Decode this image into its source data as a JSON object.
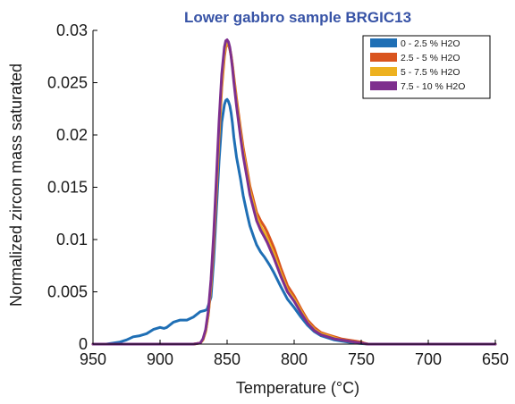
{
  "chart_data": {
    "type": "line",
    "title": "Lower gabbro sample BRGIC13",
    "xlabel": "Temperature (°C)",
    "ylabel": "Normalized zircon mass saturated",
    "xlim": [
      650,
      950
    ],
    "x_reversed": true,
    "ylim": [
      0,
      0.03
    ],
    "x_ticks": [
      950,
      900,
      850,
      800,
      750,
      700,
      650
    ],
    "y_ticks": [
      0,
      0.005,
      0.01,
      0.015,
      0.02,
      0.025,
      0.03
    ],
    "x_tick_labels": [
      "950",
      "900",
      "850",
      "800",
      "750",
      "700",
      "650"
    ],
    "y_tick_labels": [
      "0",
      "0.005",
      "0.01",
      "0.015",
      "0.02",
      "0.025",
      "0.03"
    ],
    "grid": false,
    "legend_position": "top-right",
    "series": [
      {
        "name": "0 - 2.5 % H2O",
        "color": "#1f6fb5",
        "x": [
          950,
          940,
          930,
          925,
          920,
          915,
          910,
          905,
          900,
          897,
          895,
          890,
          885,
          880,
          875,
          870,
          867,
          865,
          862,
          860,
          858,
          856,
          854,
          852,
          851,
          850,
          849,
          848,
          847,
          846,
          845,
          843,
          840,
          838,
          835,
          833,
          830,
          828,
          825,
          822,
          820,
          818,
          815,
          810,
          805,
          800,
          795,
          790,
          785,
          780,
          775,
          770,
          765,
          760,
          755,
          750,
          745,
          740,
          700,
          650
        ],
        "y": [
          0,
          0,
          0.0002,
          0.0004,
          0.0007,
          0.0008,
          0.001,
          0.0014,
          0.0016,
          0.0015,
          0.0016,
          0.0021,
          0.0023,
          0.0023,
          0.0026,
          0.0031,
          0.0032,
          0.0033,
          0.0045,
          0.008,
          0.0128,
          0.0175,
          0.0212,
          0.0229,
          0.0233,
          0.0234,
          0.0232,
          0.0228,
          0.0221,
          0.0211,
          0.0198,
          0.0179,
          0.0158,
          0.0142,
          0.0124,
          0.0113,
          0.0102,
          0.0095,
          0.0088,
          0.0083,
          0.0079,
          0.0075,
          0.0068,
          0.0055,
          0.0043,
          0.0035,
          0.0026,
          0.0018,
          0.0012,
          0.0008,
          0.0006,
          0.0004,
          0.0003,
          0.0002,
          0.0001,
          5e-05,
          0,
          0,
          0,
          0
        ]
      },
      {
        "name": "2.5 - 5 % H2O",
        "color": "#d9541e",
        "x": [
          950,
          900,
          880,
          875,
          870,
          868,
          866,
          864,
          862,
          860,
          858,
          856,
          854,
          852,
          851,
          850,
          849,
          848,
          847,
          846,
          845,
          843,
          840,
          838,
          835,
          833,
          830,
          828,
          825,
          822,
          820,
          818,
          815,
          810,
          805,
          800,
          795,
          790,
          785,
          780,
          775,
          770,
          765,
          760,
          755,
          750,
          748,
          745,
          700,
          650
        ],
        "y": [
          0,
          0,
          0,
          0,
          0.0001,
          0.0004,
          0.0012,
          0.0028,
          0.0055,
          0.0095,
          0.0145,
          0.0198,
          0.0245,
          0.0275,
          0.0284,
          0.0287,
          0.0286,
          0.0282,
          0.0276,
          0.0267,
          0.0256,
          0.0235,
          0.0206,
          0.0188,
          0.0166,
          0.0151,
          0.0136,
          0.0126,
          0.0118,
          0.0112,
          0.0107,
          0.0101,
          0.0092,
          0.0073,
          0.0056,
          0.0046,
          0.0034,
          0.0023,
          0.0016,
          0.0011,
          0.0009,
          0.0007,
          0.0005,
          0.0004,
          0.0003,
          0.0002,
          0.0001,
          0,
          0,
          0
        ]
      },
      {
        "name": "5 - 7.5 % H2O",
        "color": "#edb120",
        "x": [
          950,
          900,
          880,
          875,
          870,
          868,
          866,
          864,
          862,
          860,
          858,
          856,
          854,
          852,
          851,
          850,
          849,
          848,
          847,
          846,
          845,
          843,
          840,
          838,
          835,
          833,
          830,
          828,
          825,
          822,
          820,
          818,
          815,
          810,
          805,
          800,
          795,
          790,
          785,
          780,
          775,
          770,
          765,
          760,
          755,
          750,
          745,
          700,
          650
        ],
        "y": [
          0,
          0,
          0,
          0,
          0.0001,
          0.0004,
          0.0012,
          0.0029,
          0.0058,
          0.0099,
          0.015,
          0.0204,
          0.025,
          0.0278,
          0.0286,
          0.0288,
          0.0287,
          0.0283,
          0.0276,
          0.0266,
          0.0254,
          0.0232,
          0.0202,
          0.0184,
          0.0162,
          0.0147,
          0.0132,
          0.0122,
          0.0113,
          0.0106,
          0.0101,
          0.0095,
          0.0086,
          0.0068,
          0.0052,
          0.0043,
          0.0032,
          0.0021,
          0.0014,
          0.001,
          0.0008,
          0.0006,
          0.0004,
          0.0003,
          0.0002,
          0.0001,
          0,
          0,
          0
        ]
      },
      {
        "name": "7.5 - 10 % H2O",
        "color": "#7e2f8e",
        "x": [
          950,
          900,
          880,
          875,
          870,
          868,
          866,
          864,
          862,
          860,
          858,
          856,
          854,
          852,
          851,
          850,
          849,
          848,
          847,
          846,
          845,
          843,
          840,
          838,
          835,
          833,
          830,
          828,
          825,
          822,
          820,
          818,
          815,
          810,
          805,
          800,
          795,
          790,
          785,
          780,
          775,
          770,
          765,
          760,
          755,
          750,
          745,
          700,
          650
        ],
        "y": [
          0,
          0,
          0,
          0,
          0.0001,
          0.0005,
          0.0014,
          0.0032,
          0.0062,
          0.0105,
          0.0158,
          0.0213,
          0.0258,
          0.0284,
          0.029,
          0.0291,
          0.0289,
          0.0284,
          0.0275,
          0.0264,
          0.0251,
          0.0228,
          0.0198,
          0.018,
          0.0158,
          0.0143,
          0.0128,
          0.0118,
          0.0109,
          0.0102,
          0.0097,
          0.0091,
          0.0082,
          0.0065,
          0.005,
          0.0041,
          0.003,
          0.002,
          0.0013,
          0.0009,
          0.0007,
          0.0005,
          0.0004,
          0.0003,
          0.0002,
          0.0001,
          0,
          0,
          0
        ]
      }
    ]
  }
}
